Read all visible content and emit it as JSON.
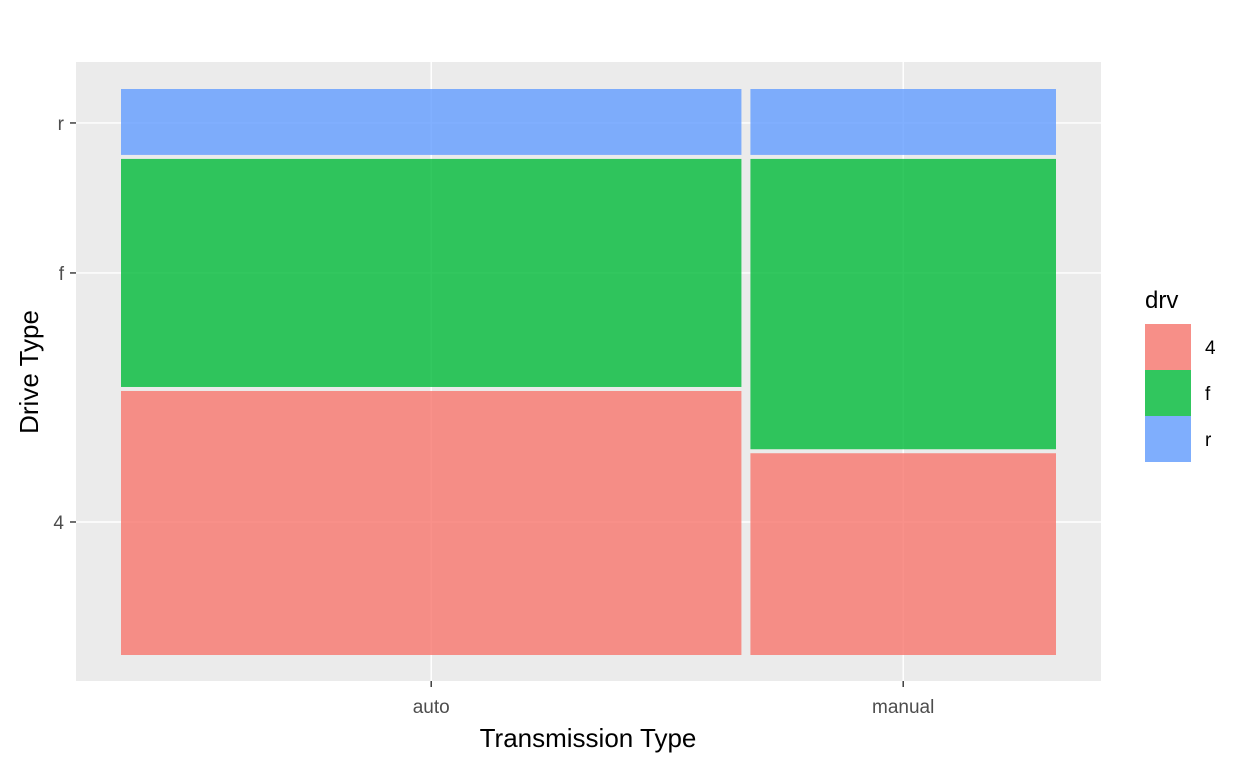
{
  "chart_data": {
    "type": "mosaic",
    "title": "",
    "xlabel": "Transmission Type",
    "ylabel": "Drive Type",
    "categories": [
      "auto",
      "manual"
    ],
    "category_widths": [
      0.67,
      0.33
    ],
    "y_ticks": [
      "4",
      "f",
      "r"
    ],
    "series": [
      {
        "name": "4",
        "color": "#F8766D",
        "values": [
          0.47,
          0.36
        ]
      },
      {
        "name": "f",
        "color": "#00BA38",
        "values": [
          0.41,
          0.52
        ]
      },
      {
        "name": "r",
        "color": "#619CFF",
        "values": [
          0.12,
          0.12
        ]
      }
    ],
    "legend": {
      "title": "drv",
      "position": "right"
    },
    "panel_background": "#EBEBEB",
    "grid": true
  }
}
